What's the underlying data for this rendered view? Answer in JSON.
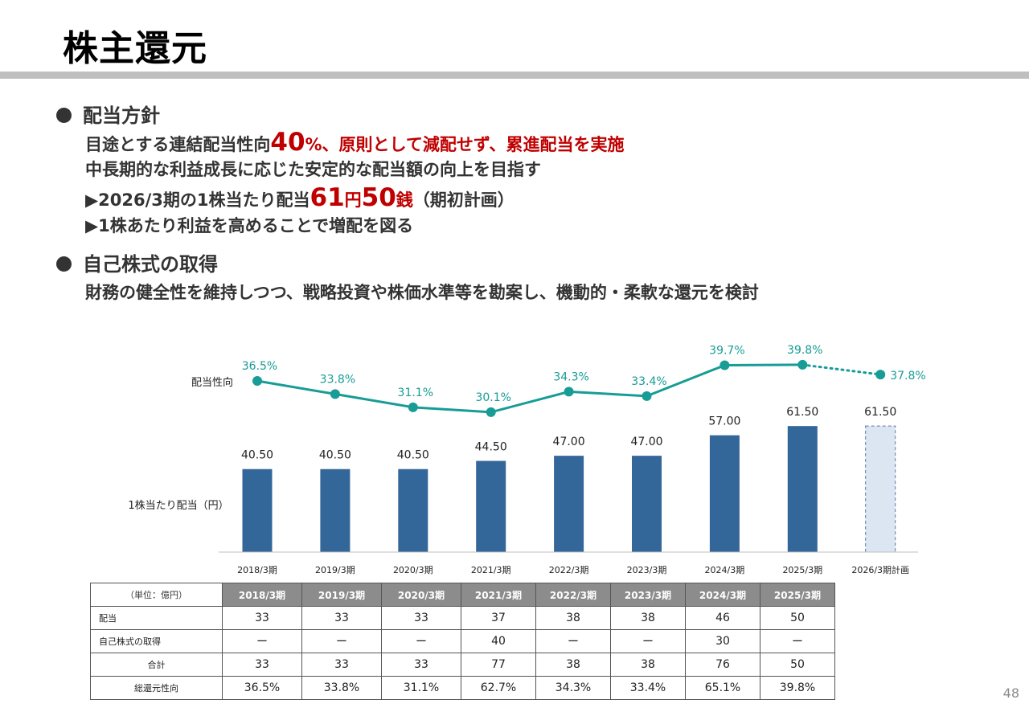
{
  "title": "株主還元",
  "sections": {
    "s1": {
      "heading": "配当方針",
      "line1_a": "目途とする連結配当性向",
      "line1_b": "40",
      "line1_c": "%、原則として減配せず、累進配当を実施",
      "line2": "中長期的な利益成長に応じた安定的な配当額の向上を目指す",
      "line3_a": "▶2026/3期の1株当たり配当",
      "line3_b": "61",
      "line3_c": "円",
      "line3_d": "50",
      "line3_e": "銭",
      "line3_f": "（期初計画）",
      "line4": "▶1株あたり利益を高めることで増配を図る"
    },
    "s2": {
      "heading": "自己株式の取得",
      "line1": "財務の健全性を維持しつつ、戦略投資や株価水準等を勘案し、機動的・柔軟な還元を検討"
    }
  },
  "chart_data": {
    "type": "bar",
    "categories": [
      "2018/3期",
      "2019/3期",
      "2020/3期",
      "2021/3期",
      "2022/3期",
      "2023/3期",
      "2024/3期",
      "2025/3期",
      "2026/3期計画"
    ],
    "series": [
      {
        "name": "1株当たり配当（円）",
        "type": "bar",
        "values": [
          40.5,
          40.5,
          40.5,
          44.5,
          47.0,
          47.0,
          57.0,
          61.5,
          61.5
        ],
        "labels": [
          "40.50",
          "40.50",
          "40.50",
          "44.50",
          "47.00",
          "47.00",
          "57.00",
          "61.50",
          "61.50"
        ],
        "planned_index": 8
      },
      {
        "name": "配当性向",
        "type": "line",
        "values": [
          36.5,
          33.8,
          31.1,
          30.1,
          34.3,
          33.4,
          39.7,
          39.8,
          37.8
        ],
        "labels": [
          "36.5%",
          "33.8%",
          "31.1%",
          "30.1%",
          "34.3%",
          "33.4%",
          "39.7%",
          "39.8%",
          "37.8%"
        ],
        "planned_index": 8
      }
    ],
    "colors": {
      "bar": "#336699",
      "bar_planned": "#dce6f2",
      "line": "#179c96"
    }
  },
  "table": {
    "unit": "（単位：億円）",
    "headers": [
      "2018/3期",
      "2019/3期",
      "2020/3期",
      "2021/3期",
      "2022/3期",
      "2023/3期",
      "2024/3期",
      "2025/3期"
    ],
    "rows": [
      {
        "label": "配当",
        "values": [
          "33",
          "33",
          "33",
          "37",
          "38",
          "38",
          "46",
          "50"
        ]
      },
      {
        "label": "自己株式の取得",
        "values": [
          "ー",
          "ー",
          "ー",
          "40",
          "ー",
          "ー",
          "30",
          "ー"
        ]
      },
      {
        "label": "合計",
        "values": [
          "33",
          "33",
          "33",
          "77",
          "38",
          "38",
          "76",
          "50"
        ]
      },
      {
        "label": "総還元性向",
        "values": [
          "36.5%",
          "33.8%",
          "31.1%",
          "62.7%",
          "34.3%",
          "33.4%",
          "65.1%",
          "39.8%"
        ]
      }
    ]
  },
  "page_number": "48"
}
